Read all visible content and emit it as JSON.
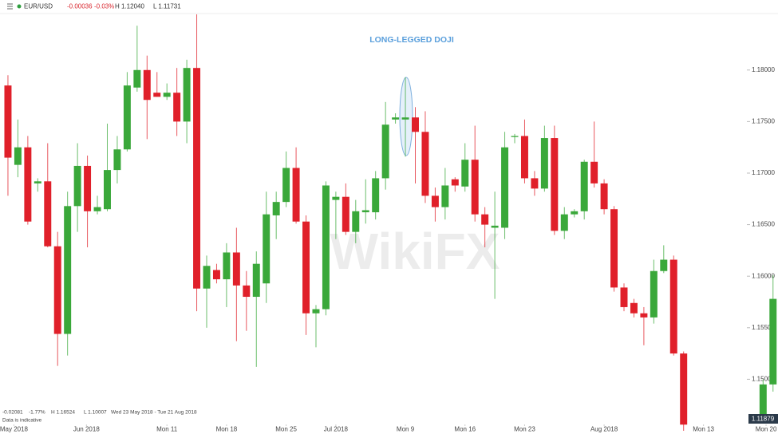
{
  "header": {
    "symbol": "EUR/USD",
    "change": "-0.00036",
    "change_pct": "-0.03%",
    "high": "H 1.12040",
    "low": "L 1.11731"
  },
  "footer": {
    "change": "-0.02081",
    "change_pct": "-1.77%",
    "high": "H 1.16524",
    "low": "L 1.10007",
    "range": "Wed 23 May 2018 - Tue 21 Aug 2018",
    "note": "Data is indicative"
  },
  "watermark": "WikiFX",
  "chart_data": {
    "type": "candlestick",
    "annotation": "LONG-LEGGED DOJI",
    "price_label": "1.11879",
    "up_color": "#3aa83a",
    "down_color": "#e0202a",
    "xlim": [
      -0.8,
      77.5
    ],
    "xticks": [
      {
        "value": 0.6,
        "label": "May 2018"
      },
      {
        "value": 7.9,
        "label": "Jun 2018"
      },
      {
        "value": 16,
        "label": "Mon 11"
      },
      {
        "value": 22,
        "label": "Mon 18"
      },
      {
        "value": 28,
        "label": "Mon 25"
      },
      {
        "value": 33,
        "label": "Jul 2018"
      },
      {
        "value": 40,
        "label": "Mon 9"
      },
      {
        "value": 46,
        "label": "Mon 16"
      },
      {
        "value": 52,
        "label": "Mon 23"
      },
      {
        "value": 60,
        "label": "Aug 2018"
      },
      {
        "value": 70,
        "label": "Mon 13"
      },
      {
        "value": 76.3,
        "label": "Mon 20"
      }
    ],
    "ylim": [
      1.145,
      1.1854
    ],
    "yticks": [
      {
        "value": 1.18,
        "label": "1.18000"
      },
      {
        "value": 1.175,
        "label": "1.17500"
      },
      {
        "value": 1.17,
        "label": "1.17000"
      },
      {
        "value": 1.165,
        "label": "1.16500"
      },
      {
        "value": 1.16,
        "label": "1.16000"
      },
      {
        "value": 1.155,
        "label": "1.15500"
      },
      {
        "value": 1.15,
        "label": "1.15000"
      }
    ],
    "open": [
      1.1785,
      1.1708,
      1.1725,
      1.169,
      1.1692,
      1.1629,
      1.1544,
      1.1668,
      1.1707,
      1.1663,
      1.1665,
      1.1703,
      1.1723,
      1.1783,
      1.18,
      1.1778,
      1.1774,
      1.1778,
      1.175,
      1.1802,
      1.1588,
      1.1606,
      1.1597,
      1.1623,
      1.1591,
      1.158,
      1.1593,
      1.1659,
      1.1672,
      1.1705,
      1.1653,
      1.1564,
      1.1568,
      1.1674,
      1.1677,
      1.1643,
      1.1662,
      1.1662,
      1.1695,
      1.1752,
      1.1752,
      1.1754,
      1.174,
      1.1678,
      1.1667,
      1.1694,
      1.1687,
      1.1713,
      1.166,
      1.1647,
      1.1647,
      1.1735,
      1.1736,
      1.1695,
      1.1685,
      1.1734,
      1.1644,
      1.166,
      1.1663,
      1.1711,
      1.169,
      1.1665,
      1.1589,
      1.1574,
      1.1564,
      1.156,
      1.1605,
      1.1616,
      1.1525,
      null,
      null,
      null,
      null,
      null,
      null,
      null,
      1.1465,
      1.1495
    ],
    "high": [
      1.1795,
      1.1752,
      1.1736,
      1.1695,
      1.1729,
      1.1643,
      1.1682,
      1.1729,
      1.1717,
      1.1678,
      1.1748,
      1.1736,
      1.1798,
      1.1843,
      1.1814,
      1.1798,
      1.1787,
      1.1802,
      1.181,
      1.1854,
      1.162,
      1.1612,
      1.1632,
      1.1647,
      1.1605,
      1.1624,
      1.1682,
      1.1682,
      1.1721,
      1.1725,
      1.1659,
      1.1572,
      1.1692,
      1.1682,
      1.169,
      1.1674,
      1.1694,
      1.1702,
      1.1769,
      1.1758,
      1.1793,
      1.1764,
      1.176,
      1.1686,
      1.1705,
      1.1696,
      1.1729,
      1.1746,
      1.1667,
      1.1682,
      1.174,
      1.1738,
      1.1752,
      1.1702,
      1.1746,
      1.1746,
      1.1667,
      1.1665,
      1.1713,
      1.175,
      1.1694,
      1.1668,
      1.1593,
      1.1578,
      1.157,
      1.1616,
      1.163,
      1.162,
      1.1527,
      null,
      null,
      null,
      null,
      null,
      null,
      null,
      1.15,
      1.1601
    ],
    "low": [
      1.1678,
      1.1696,
      1.165,
      1.1682,
      1.1628,
      1.1513,
      1.1523,
      1.1643,
      1.1628,
      1.166,
      1.1663,
      1.169,
      1.1721,
      1.1779,
      1.1733,
      1.1774,
      1.1771,
      1.1736,
      1.1729,
      1.1566,
      1.155,
      1.1593,
      1.157,
      1.1537,
      1.1547,
      1.1512,
      1.1574,
      1.1636,
      1.1667,
      1.1651,
      1.1543,
      1.1531,
      1.1562,
      1.1636,
      1.164,
      1.1632,
      1.1651,
      1.1655,
      1.1684,
      1.1748,
      1.1716,
      1.169,
      1.1671,
      1.1653,
      1.1655,
      1.1682,
      1.1682,
      1.1653,
      1.1628,
      1.1578,
      1.1636,
      1.1729,
      1.169,
      1.1678,
      1.1682,
      1.164,
      1.1636,
      1.1657,
      1.1655,
      1.1686,
      1.166,
      1.1585,
      1.1566,
      1.156,
      1.1533,
      1.1554,
      1.1603,
      1.1523,
      1.145,
      null,
      null,
      null,
      null,
      null,
      null,
      null,
      1.1461,
      1.1488
    ],
    "close": [
      1.1715,
      1.1725,
      1.1653,
      1.1692,
      1.1629,
      1.1544,
      1.1668,
      1.1707,
      1.1663,
      1.1667,
      1.1703,
      1.1723,
      1.1785,
      1.18,
      1.1771,
      1.1774,
      1.1778,
      1.175,
      1.1802,
      1.1588,
      1.161,
      1.1597,
      1.1623,
      1.1591,
      1.158,
      1.1612,
      1.166,
      1.1672,
      1.1705,
      1.1653,
      1.1564,
      1.1568,
      1.1688,
      1.1677,
      1.1643,
      1.1663,
      1.1664,
      1.1695,
      1.1747,
      1.1754,
      1.1754,
      1.174,
      1.1678,
      1.1667,
      1.1688,
      1.1688,
      1.1713,
      1.166,
      1.165,
      1.1649,
      1.1725,
      1.1736,
      1.1695,
      1.1685,
      1.1734,
      1.1644,
      1.166,
      1.1663,
      1.1711,
      1.169,
      1.1665,
      1.1589,
      1.157,
      1.1564,
      1.156,
      1.1605,
      1.1616,
      1.1525,
      1.1456,
      null,
      null,
      null,
      null,
      null,
      null,
      null,
      1.1495,
      1.1578
    ]
  }
}
